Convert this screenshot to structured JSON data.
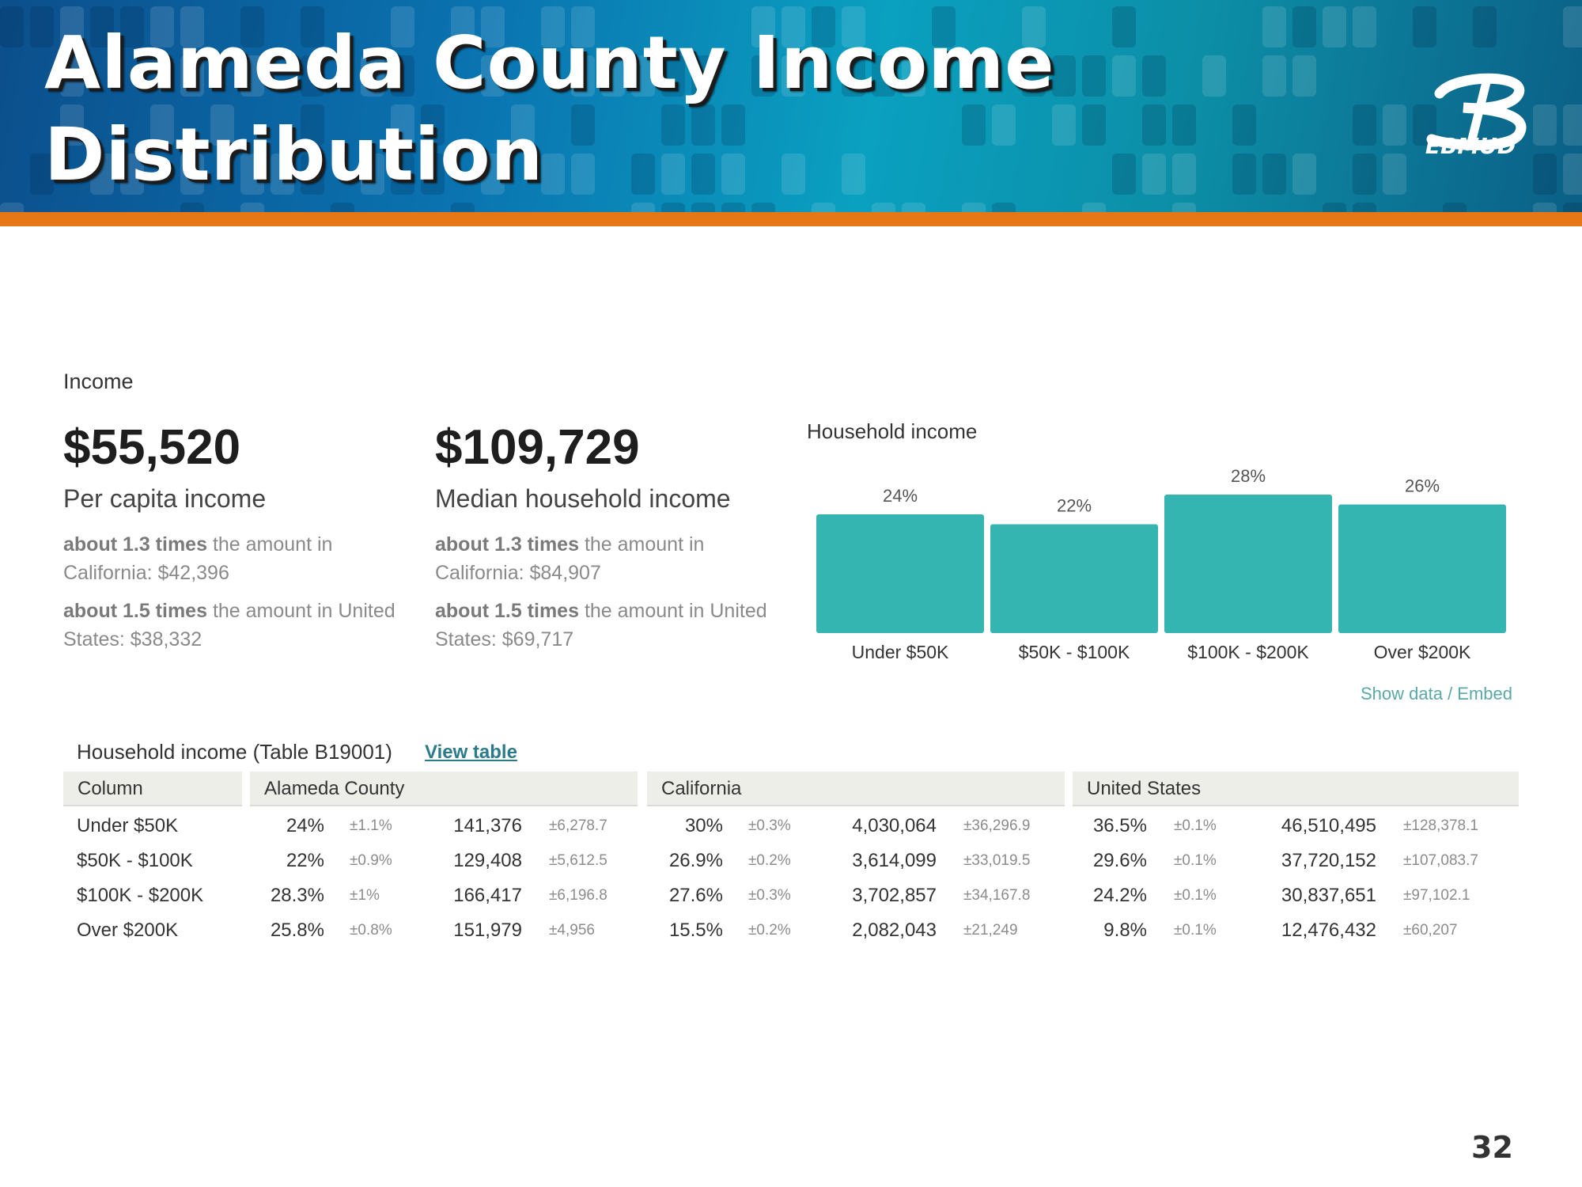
{
  "slide": {
    "title": "Alameda County Income Distribution",
    "logo_text": "EBMUD",
    "page_number": "32"
  },
  "income": {
    "section_label": "Income",
    "per_capita": {
      "value": "$55,520",
      "label": "Per capita income",
      "cmp1_bold": "about 1.3 times",
      "cmp1_rest": " the amount in California: $42,396",
      "cmp2_bold": "about 1.5 times",
      "cmp2_rest": " the amount in United States: $38,332"
    },
    "median_household": {
      "value": "$109,729",
      "label": "Median household income",
      "cmp1_bold": "about 1.3 times",
      "cmp1_rest": " the amount in California: $84,907",
      "cmp2_bold": "about 1.5 times",
      "cmp2_rest": " the amount in United States: $69,717"
    }
  },
  "chart_data": {
    "type": "bar",
    "title": "Household income",
    "categories": [
      "Under $50K",
      "$50K - $100K",
      "$100K - $200K",
      "Over $200K"
    ],
    "values": [
      24,
      22,
      28,
      26
    ],
    "value_labels": [
      "24%",
      "22%",
      "28%",
      "26%"
    ],
    "ylim": [
      0,
      32
    ],
    "grid": false,
    "bar_color": "#35b5b2",
    "show_data_label": "Show data / Embed"
  },
  "table": {
    "title": "Household income (Table B19001)",
    "link": "View table",
    "headers": [
      "Column",
      "Alameda County",
      "California",
      "United States"
    ],
    "rows": [
      {
        "label": "Under $50K",
        "cells": [
          "24%",
          "±1.1%",
          "141,376",
          "±6,278.7",
          "30%",
          "±0.3%",
          "4,030,064",
          "±36,296.9",
          "36.5%",
          "±0.1%",
          "46,510,495",
          "±128,378.1"
        ]
      },
      {
        "label": "$50K - $100K",
        "cells": [
          "22%",
          "±0.9%",
          "129,408",
          "±5,612.5",
          "26.9%",
          "±0.2%",
          "3,614,099",
          "±33,019.5",
          "29.6%",
          "±0.1%",
          "37,720,152",
          "±107,083.7"
        ]
      },
      {
        "label": "$100K - $200K",
        "cells": [
          "28.3%",
          "±1%",
          "166,417",
          "±6,196.8",
          "27.6%",
          "±0.3%",
          "3,702,857",
          "±34,167.8",
          "24.2%",
          "±0.1%",
          "30,837,651",
          "±97,102.1"
        ]
      },
      {
        "label": "Over $200K",
        "cells": [
          "25.8%",
          "±0.8%",
          "151,979",
          "±4,956",
          "15.5%",
          "±0.2%",
          "2,082,043",
          "±21,249",
          "9.8%",
          "±0.1%",
          "12,476,432",
          "±60,207"
        ]
      }
    ]
  }
}
